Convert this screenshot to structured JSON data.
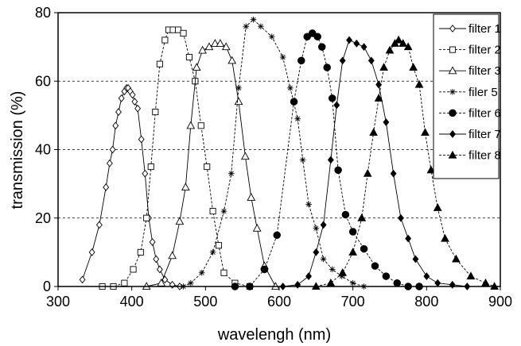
{
  "chart_data": {
    "type": "line",
    "xlabel": "wavelengh (nm)",
    "ylabel": "transmission (%)",
    "xlim": [
      300,
      900
    ],
    "ylim": [
      0,
      80
    ],
    "xticks": [
      300,
      400,
      500,
      600,
      700,
      800,
      900
    ],
    "yticks": [
      0,
      20,
      40,
      60,
      80
    ],
    "grid": "horizontal dashed at 20, 40, 60",
    "legend_position": "top-right",
    "series": [
      {
        "name": "filter 1",
        "marker": "diamond-open",
        "line": "solid",
        "x": [
          333,
          346,
          356,
          365,
          370,
          374,
          378,
          382,
          386,
          390,
          393,
          395,
          398,
          401,
          404,
          408,
          413,
          418,
          423,
          428,
          433,
          438,
          445,
          455,
          465
        ],
        "y": [
          2,
          10,
          18,
          29,
          36,
          40,
          47,
          51,
          55,
          57,
          58,
          58,
          57,
          56,
          54,
          52,
          43,
          33,
          20,
          13,
          8,
          5,
          2,
          0.5,
          0
        ]
      },
      {
        "name": "filter 2",
        "marker": "square-open",
        "line": "dashed",
        "x": [
          360,
          375,
          390,
          402,
          412,
          420,
          426,
          432,
          438,
          445,
          450,
          456,
          463,
          470,
          478,
          486,
          494,
          502,
          510,
          518,
          525,
          540,
          560
        ],
        "y": [
          0,
          0,
          1,
          5,
          10,
          20,
          35,
          51,
          65,
          72,
          75,
          75,
          75,
          74,
          67,
          60,
          47,
          35,
          22,
          12,
          4,
          1,
          0
        ]
      },
      {
        "name": "filter 3",
        "marker": "triangle-open",
        "line": "solid",
        "x": [
          420,
          440,
          455,
          465,
          473,
          480,
          488,
          496,
          505,
          513,
          520,
          528,
          536,
          545,
          554,
          562,
          570,
          580,
          595
        ],
        "y": [
          0,
          1,
          9,
          19,
          29,
          47,
          64,
          69,
          70,
          71,
          71,
          70,
          66,
          54,
          38,
          26,
          17,
          6,
          0
        ]
      },
      {
        "name": "filer 5",
        "marker": "asterisk",
        "line": "dashed",
        "x": [
          470,
          480,
          495,
          510,
          525,
          535,
          545,
          555,
          565,
          575,
          590,
          605,
          615,
          625,
          632,
          640,
          650,
          660,
          672,
          685,
          700,
          715
        ],
        "y": [
          0,
          1,
          4,
          10,
          22,
          33,
          58,
          76,
          78,
          76,
          73,
          67,
          58,
          49,
          37,
          24,
          17,
          8,
          5,
          3,
          1,
          0
        ]
      },
      {
        "name": "filter 6",
        "marker": "circle-filled",
        "line": "dashed",
        "x": [
          540,
          560,
          580,
          597,
          620,
          630,
          638,
          645,
          652,
          658,
          665,
          672,
          680,
          690,
          700,
          715,
          730,
          745,
          760,
          775,
          790
        ],
        "y": [
          0,
          0,
          5,
          15,
          54,
          66,
          73,
          74,
          73,
          70,
          64,
          55,
          34,
          21,
          16,
          11,
          6,
          3,
          1,
          0,
          0
        ]
      },
      {
        "name": "filter 7",
        "marker": "diamond-filled",
        "line": "solid",
        "x": [
          605,
          625,
          640,
          650,
          660,
          670,
          678,
          686,
          695,
          705,
          715,
          725,
          735,
          745,
          755,
          765,
          775,
          785,
          800,
          815,
          835,
          855
        ],
        "y": [
          0,
          0.5,
          3,
          10,
          18,
          37,
          53,
          66,
          72,
          71,
          70,
          66,
          59,
          48,
          33,
          20,
          14,
          8,
          3,
          1,
          0.5,
          0
        ]
      },
      {
        "name": "filter 8",
        "marker": "triangle-filled",
        "line": "dashed",
        "x": [
          650,
          670,
          686,
          700,
          712,
          720,
          728,
          735,
          742,
          750,
          757,
          762,
          768,
          775,
          782,
          790,
          798,
          806,
          815,
          825,
          840,
          860,
          880,
          892
        ],
        "y": [
          0,
          1,
          4,
          10,
          20,
          33,
          45,
          55,
          64,
          69,
          71,
          72,
          71,
          70,
          64,
          59,
          45,
          34,
          23,
          14,
          8,
          3,
          1,
          0
        ]
      }
    ]
  }
}
